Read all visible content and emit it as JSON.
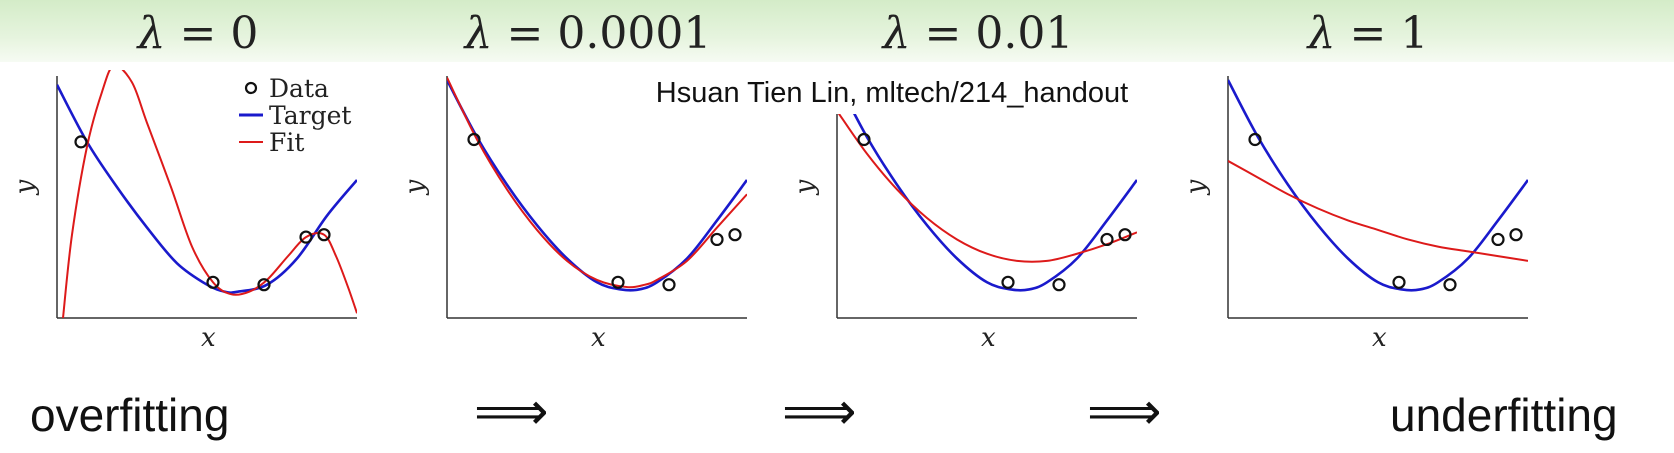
{
  "credit": "Hsuan Tien Lin, mltech/214_handout",
  "captions": {
    "left": "overfitting",
    "right": "underfitting",
    "arrow": "⟹"
  },
  "colors": {
    "target": "#1a1acc",
    "fit": "#dd1a1a",
    "data": "#111111",
    "axis": "#333333"
  },
  "chart_data": [
    {
      "type": "line",
      "title": "λ = 0",
      "title_sym": "λ",
      "title_rest": " = 0",
      "xlabel": "x",
      "ylabel": "y",
      "xlim": [
        0,
        1
      ],
      "ylim": [
        0,
        1
      ],
      "legend": {
        "placement": "top-right",
        "entries": [
          "Data",
          "Target",
          "Fit"
        ]
      },
      "data_points": {
        "x": [
          0.08,
          0.52,
          0.69,
          0.83,
          0.89
        ],
        "y": [
          0.74,
          0.15,
          0.14,
          0.34,
          0.35
        ]
      },
      "series": [
        {
          "name": "Target",
          "color": "#1a1acc",
          "x": [
            0,
            0.1,
            0.2,
            0.3,
            0.4,
            0.5,
            0.56,
            0.6,
            0.7,
            0.8,
            0.9,
            1.0
          ],
          "y": [
            0.98,
            0.74,
            0.55,
            0.38,
            0.23,
            0.14,
            0.11,
            0.11,
            0.14,
            0.25,
            0.43,
            0.58
          ]
        },
        {
          "name": "Fit",
          "color": "#dd1a1a",
          "x": [
            0.02,
            0.05,
            0.1,
            0.15,
            0.19,
            0.25,
            0.3,
            0.38,
            0.45,
            0.52,
            0.58,
            0.64,
            0.7,
            0.77,
            0.83,
            0.89,
            0.93,
            0.97,
            1.0
          ],
          "y": [
            0.0,
            0.35,
            0.72,
            0.95,
            1.06,
            0.99,
            0.82,
            0.55,
            0.3,
            0.15,
            0.1,
            0.11,
            0.16,
            0.26,
            0.34,
            0.35,
            0.26,
            0.13,
            0.02
          ]
        }
      ]
    },
    {
      "type": "line",
      "title": "λ = 0.0001",
      "title_sym": "λ",
      "title_rest": " = 0.0001",
      "xlabel": "x",
      "ylabel": "y",
      "xlim": [
        0,
        1
      ],
      "ylim": [
        0,
        1
      ],
      "data_points": {
        "x": [
          0.09,
          0.57,
          0.74,
          0.9,
          0.96
        ],
        "y": [
          0.75,
          0.15,
          0.14,
          0.33,
          0.35
        ]
      },
      "series": [
        {
          "name": "Target",
          "color": "#1a1acc",
          "x": [
            0,
            0.1,
            0.2,
            0.3,
            0.4,
            0.5,
            0.58,
            0.64,
            0.7,
            0.8,
            0.9,
            1.0
          ],
          "y": [
            1.0,
            0.76,
            0.56,
            0.39,
            0.25,
            0.15,
            0.12,
            0.12,
            0.15,
            0.25,
            0.41,
            0.58
          ]
        },
        {
          "name": "Fit",
          "color": "#dd1a1a",
          "x": [
            0,
            0.1,
            0.2,
            0.3,
            0.4,
            0.5,
            0.6,
            0.66,
            0.7,
            0.8,
            0.9,
            1.0
          ],
          "y": [
            1.01,
            0.75,
            0.54,
            0.37,
            0.24,
            0.16,
            0.13,
            0.14,
            0.16,
            0.24,
            0.38,
            0.52
          ]
        }
      ]
    },
    {
      "type": "line",
      "title": "λ = 0.01",
      "title_sym": "λ",
      "title_rest": " = 0.01",
      "xlabel": "x",
      "ylabel": "y",
      "xlim": [
        0,
        1
      ],
      "ylim": [
        0,
        1
      ],
      "data_points": {
        "x": [
          0.09,
          0.57,
          0.74,
          0.9,
          0.96
        ],
        "y": [
          0.75,
          0.15,
          0.14,
          0.33,
          0.35
        ]
      },
      "series": [
        {
          "name": "Target",
          "color": "#1a1acc",
          "x": [
            0,
            0.1,
            0.2,
            0.3,
            0.4,
            0.5,
            0.58,
            0.64,
            0.7,
            0.8,
            0.9,
            1.0
          ],
          "y": [
            1.0,
            0.76,
            0.56,
            0.39,
            0.25,
            0.15,
            0.12,
            0.12,
            0.15,
            0.25,
            0.41,
            0.58
          ]
        },
        {
          "name": "Fit",
          "color": "#dd1a1a",
          "x": [
            0,
            0.1,
            0.2,
            0.3,
            0.4,
            0.5,
            0.6,
            0.7,
            0.8,
            0.9,
            1.0
          ],
          "y": [
            0.87,
            0.69,
            0.54,
            0.42,
            0.33,
            0.27,
            0.24,
            0.24,
            0.27,
            0.31,
            0.36
          ]
        }
      ]
    },
    {
      "type": "line",
      "title": "λ = 1",
      "title_sym": "λ",
      "title_rest": " = 1",
      "xlabel": "x",
      "ylabel": "y",
      "xlim": [
        0,
        1
      ],
      "ylim": [
        0,
        1
      ],
      "data_points": {
        "x": [
          0.09,
          0.57,
          0.74,
          0.9,
          0.96
        ],
        "y": [
          0.75,
          0.15,
          0.14,
          0.33,
          0.35
        ]
      },
      "series": [
        {
          "name": "Target",
          "color": "#1a1acc",
          "x": [
            0,
            0.1,
            0.2,
            0.3,
            0.4,
            0.5,
            0.58,
            0.64,
            0.7,
            0.8,
            0.9,
            1.0
          ],
          "y": [
            1.0,
            0.76,
            0.56,
            0.39,
            0.25,
            0.15,
            0.12,
            0.12,
            0.15,
            0.25,
            0.41,
            0.58
          ]
        },
        {
          "name": "Fit",
          "color": "#dd1a1a",
          "x": [
            0,
            0.1,
            0.2,
            0.3,
            0.4,
            0.5,
            0.6,
            0.7,
            0.8,
            0.9,
            1.0
          ],
          "y": [
            0.66,
            0.59,
            0.52,
            0.46,
            0.41,
            0.37,
            0.33,
            0.3,
            0.28,
            0.26,
            0.24
          ]
        }
      ]
    }
  ]
}
